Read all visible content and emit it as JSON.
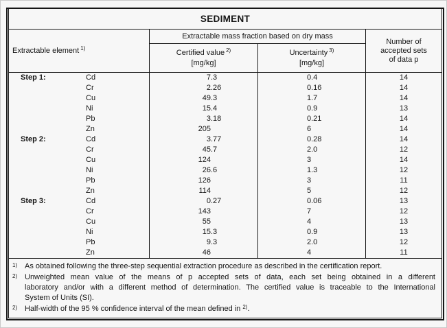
{
  "title": "SEDIMENT",
  "table": {
    "header": {
      "element_label": "Extractable element",
      "element_sup": "1)",
      "mass_fraction_label": "Extractable mass fraction based on dry mass",
      "certified_label": "Certified value",
      "certified_sup": "2)",
      "certified_unit": "[mg/kg]",
      "uncertainty_label": "Uncertainty",
      "uncertainty_sup": "3)",
      "uncertainty_unit": "[mg/kg]",
      "sets_lines": [
        "Number of",
        "accepted sets",
        "of data p"
      ]
    },
    "rows": [
      {
        "step": "Step 1:",
        "element": "Cd",
        "certified": "7.3",
        "uncertainty": "0.4",
        "sets": "14"
      },
      {
        "step": "",
        "element": "Cr",
        "certified": "2.26",
        "uncertainty": "0.16",
        "sets": "14"
      },
      {
        "step": "",
        "element": "Cu",
        "certified": "49.3",
        "uncertainty": "1.7",
        "sets": "14"
      },
      {
        "step": "",
        "element": "Ni",
        "certified": "15.4",
        "uncertainty": "0.9",
        "sets": "13"
      },
      {
        "step": "",
        "element": "Pb",
        "certified": "3.18",
        "uncertainty": "0.21",
        "sets": "14"
      },
      {
        "step": "",
        "element": "Zn",
        "certified": "205",
        "uncertainty": "6",
        "sets": "14"
      },
      {
        "step": "Step 2:",
        "element": "Cd",
        "certified": "3.77",
        "uncertainty": "0.28",
        "sets": "14"
      },
      {
        "step": "",
        "element": "Cr",
        "certified": "45.7",
        "uncertainty": "2.0",
        "sets": "12"
      },
      {
        "step": "",
        "element": "Cu",
        "certified": "124",
        "uncertainty": "3",
        "sets": "14"
      },
      {
        "step": "",
        "element": "Ni",
        "certified": "26.6",
        "uncertainty": "1.3",
        "sets": "12"
      },
      {
        "step": "",
        "element": "Pb",
        "certified": "126",
        "uncertainty": "3",
        "sets": "11"
      },
      {
        "step": "",
        "element": "Zn",
        "certified": "114",
        "uncertainty": "5",
        "sets": "12"
      },
      {
        "step": "Step 3:",
        "element": "Cd",
        "certified": "0.27",
        "uncertainty": "0.06",
        "sets": "13"
      },
      {
        "step": "",
        "element": "Cr",
        "certified": "143",
        "uncertainty": "7",
        "sets": "12"
      },
      {
        "step": "",
        "element": "Cu",
        "certified": "55",
        "uncertainty": "4",
        "sets": "13"
      },
      {
        "step": "",
        "element": "Ni",
        "certified": "15.3",
        "uncertainty": "0.9",
        "sets": "13"
      },
      {
        "step": "",
        "element": "Pb",
        "certified": "9.3",
        "uncertainty": "2.0",
        "sets": "12"
      },
      {
        "step": "",
        "element": "Zn",
        "certified": "46",
        "uncertainty": "4",
        "sets": "11"
      }
    ]
  },
  "footnotes": [
    {
      "marker": "1)",
      "text": "As obtained following the three-step sequential extraction procedure as described in the certification report."
    },
    {
      "marker": "2)",
      "lines": [
        "Unweighted mean value of the means of p accepted sets of data, each set being obtained in a different",
        "laboratory and/or with a different method of determination. The certified value is traceable to the International",
        "System of Units (SI)."
      ]
    },
    {
      "marker": "2)",
      "text": "Half-width of the 95 % confidence interval of the mean defined in ",
      "trailing_sup": "2)",
      "trailing_text": "."
    }
  ]
}
